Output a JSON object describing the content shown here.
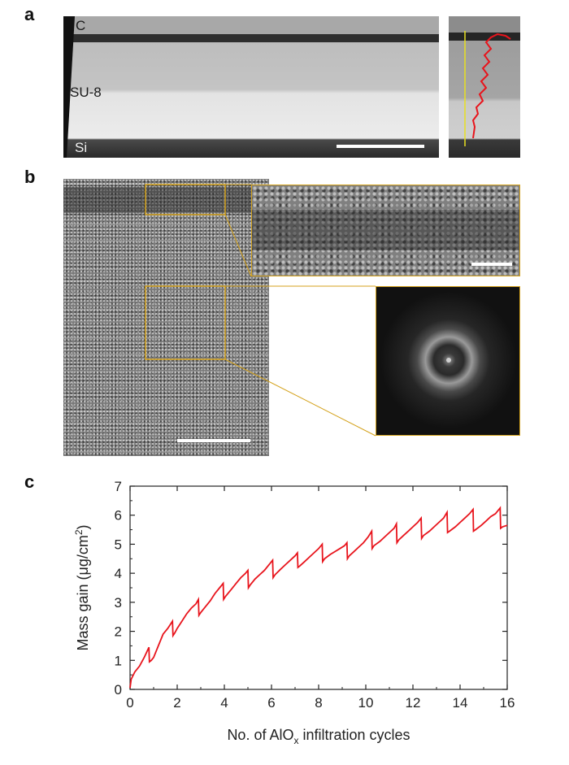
{
  "panels": {
    "a": {
      "letter": "a",
      "labels": {
        "c": "C",
        "su8": "SU-8",
        "si": "Si"
      }
    },
    "b": {
      "letter": "b"
    },
    "c": {
      "letter": "c"
    }
  },
  "colors": {
    "inset_frame": "#d4a21c",
    "curve": "#e8141c",
    "profile_line": "#e8e020"
  },
  "chart_data": {
    "type": "line",
    "xlabel_parts": [
      "No. of AlO",
      "x",
      " infiltration cycles"
    ],
    "ylabel_parts": [
      "Mass gain (μg/cm",
      "2",
      ")"
    ],
    "xlim": [
      0,
      16
    ],
    "ylim": [
      0,
      7
    ],
    "xticks": [
      0,
      2,
      4,
      6,
      8,
      10,
      12,
      14,
      16
    ],
    "yticks": [
      0,
      1,
      2,
      3,
      4,
      5,
      6,
      7
    ],
    "grid": false,
    "series": [
      {
        "color": "#e8141c",
        "x": [
          0,
          0.05,
          0.2,
          0.4,
          0.6,
          0.8,
          0.82,
          0.9,
          1.0,
          1.2,
          1.4,
          1.6,
          1.8,
          1.82,
          1.9,
          2.0,
          2.2,
          2.4,
          2.6,
          2.8,
          2.9,
          2.92,
          3.0,
          3.2,
          3.4,
          3.6,
          3.8,
          3.95,
          3.97,
          4.05,
          4.3,
          4.5,
          4.7,
          4.9,
          5.0,
          5.02,
          5.1,
          5.3,
          5.5,
          5.7,
          5.9,
          6.05,
          6.07,
          6.15,
          6.4,
          6.6,
          6.8,
          7.0,
          7.1,
          7.12,
          7.2,
          7.4,
          7.6,
          7.8,
          8.0,
          8.15,
          8.17,
          8.25,
          8.5,
          8.7,
          8.9,
          9.1,
          9.2,
          9.22,
          9.3,
          9.5,
          9.7,
          9.9,
          10.1,
          10.25,
          10.27,
          10.35,
          10.6,
          10.8,
          11.0,
          11.2,
          11.3,
          11.32,
          11.4,
          11.6,
          11.8,
          12.0,
          12.2,
          12.35,
          12.37,
          12.45,
          12.7,
          12.9,
          13.1,
          13.3,
          13.45,
          13.47,
          13.55,
          13.8,
          14.0,
          14.2,
          14.4,
          14.55,
          14.57,
          14.65,
          14.9,
          15.1,
          15.3,
          15.5,
          15.7,
          15.72,
          15.8,
          16.0
        ],
        "y": [
          0.05,
          0.35,
          0.6,
          0.8,
          1.1,
          1.45,
          0.95,
          1.0,
          1.1,
          1.5,
          1.9,
          2.1,
          2.35,
          1.85,
          1.95,
          2.1,
          2.35,
          2.6,
          2.8,
          2.95,
          3.1,
          2.55,
          2.65,
          2.85,
          3.05,
          3.3,
          3.5,
          3.65,
          3.1,
          3.2,
          3.45,
          3.65,
          3.85,
          4.0,
          4.1,
          3.5,
          3.6,
          3.8,
          3.95,
          4.1,
          4.3,
          4.45,
          3.85,
          3.95,
          4.15,
          4.3,
          4.45,
          4.6,
          4.7,
          4.2,
          4.25,
          4.4,
          4.55,
          4.7,
          4.85,
          5.0,
          4.4,
          4.5,
          4.65,
          4.75,
          4.85,
          4.95,
          5.05,
          4.5,
          4.6,
          4.75,
          4.9,
          5.05,
          5.25,
          5.45,
          4.85,
          4.95,
          5.1,
          5.25,
          5.4,
          5.55,
          5.7,
          5.05,
          5.15,
          5.3,
          5.45,
          5.6,
          5.75,
          5.9,
          5.2,
          5.3,
          5.45,
          5.6,
          5.75,
          5.9,
          6.1,
          5.4,
          5.45,
          5.6,
          5.75,
          5.9,
          6.05,
          6.2,
          5.45,
          5.5,
          5.65,
          5.8,
          5.95,
          6.05,
          6.25,
          5.55,
          5.6,
          5.65
        ]
      }
    ]
  }
}
